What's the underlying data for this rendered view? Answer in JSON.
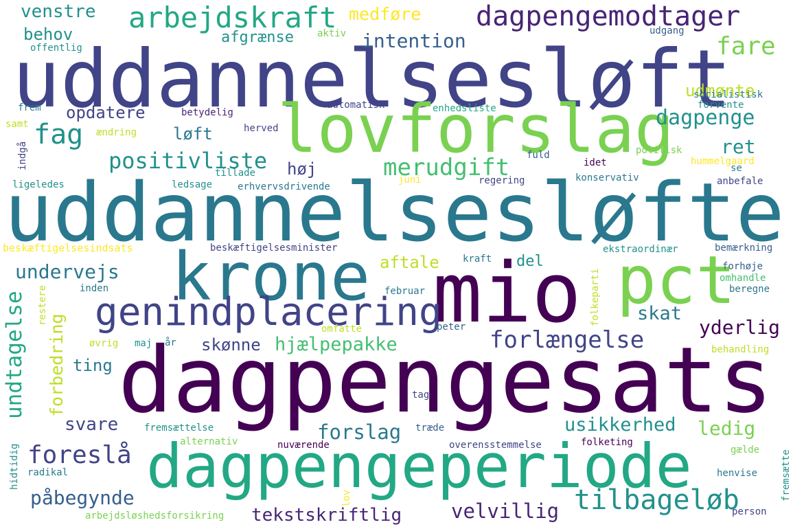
{
  "palette": {
    "dark_purple": "#440154",
    "purple": "#482475",
    "indigo": "#414487",
    "blue": "#355f8d",
    "steel_blue": "#2a788e",
    "teal": "#21918c",
    "sea_green": "#22a884",
    "green": "#44bf70",
    "light_green": "#7ad151",
    "yellow_green": "#bddf26",
    "yellow": "#fde725"
  },
  "words": [
    {
      "text": "dagpengesats",
      "color": "#440154"
    },
    {
      "text": "uddannelsesløfte",
      "color": "#2a788e"
    },
    {
      "text": "uddannelsesløft",
      "color": "#414487"
    },
    {
      "text": "dagpengeperiode",
      "color": "#22a884"
    },
    {
      "text": "mio",
      "color": "#440154"
    },
    {
      "text": "lovforslag",
      "color": "#7ad151"
    },
    {
      "text": "krone",
      "color": "#2a788e"
    },
    {
      "text": "pct",
      "color": "#7ad151"
    },
    {
      "text": "genindplacering",
      "color": "#414487"
    },
    {
      "text": "dagpengemodtager",
      "color": "#482475"
    },
    {
      "text": "arbejdskraft",
      "color": "#22a884"
    },
    {
      "text": "tilbageløb",
      "color": "#21918c"
    },
    {
      "text": "foreslå",
      "color": "#414487"
    },
    {
      "text": "forlængelse",
      "color": "#414487"
    },
    {
      "text": "fag",
      "color": "#21918c"
    },
    {
      "text": "fare",
      "color": "#7ad151"
    },
    {
      "text": "merudgift",
      "color": "#44bf70"
    },
    {
      "text": "positivliste",
      "color": "#21918c"
    },
    {
      "text": "dagpenge",
      "color": "#21918c"
    },
    {
      "text": "hjælpepakke",
      "color": "#44bf70"
    },
    {
      "text": "usikkerhed",
      "color": "#21918c"
    },
    {
      "text": "forslag",
      "color": "#2a788e"
    },
    {
      "text": "velvillig",
      "color": "#482475"
    },
    {
      "text": "tekstskriftlig",
      "color": "#482475"
    },
    {
      "text": "påbegynde",
      "color": "#355f8d"
    },
    {
      "text": "undervejs",
      "color": "#2a788e"
    },
    {
      "text": "yderlig",
      "color": "#440154"
    },
    {
      "text": "intention",
      "color": "#355f8d"
    },
    {
      "text": "venstre",
      "color": "#21918c"
    },
    {
      "text": "behov",
      "color": "#21918c"
    },
    {
      "text": "medføre",
      "color": "#fde725"
    },
    {
      "text": "afgrænse",
      "color": "#21918c"
    },
    {
      "text": "opdatere",
      "color": "#414487"
    },
    {
      "text": "løft",
      "color": "#2a788e"
    },
    {
      "text": "høj",
      "color": "#414487"
    },
    {
      "text": "ret",
      "color": "#21918c"
    },
    {
      "text": "udmønte",
      "color": "#bddf26"
    },
    {
      "text": "aftale",
      "color": "#bddf26"
    },
    {
      "text": "del",
      "color": "#21918c"
    },
    {
      "text": "skat",
      "color": "#2a788e"
    },
    {
      "text": "skønne",
      "color": "#414487"
    },
    {
      "text": "ting",
      "color": "#2a788e"
    },
    {
      "text": "svare",
      "color": "#414487"
    },
    {
      "text": "ledig",
      "color": "#7ad151"
    },
    {
      "text": "undtagelse",
      "color": "#22a884"
    },
    {
      "text": "forbedring",
      "color": "#bddf26"
    },
    {
      "text": "aktiv",
      "color": "#7ad151"
    },
    {
      "text": "udgang",
      "color": "#355f8d"
    },
    {
      "text": "offentlig",
      "color": "#21918c"
    },
    {
      "text": "frem",
      "color": "#2a788e"
    },
    {
      "text": "automatisk",
      "color": "#414487"
    },
    {
      "text": "enhedsliste",
      "color": "#22a884"
    },
    {
      "text": "socialistisk",
      "color": "#2a788e"
    },
    {
      "text": "forvente",
      "color": "#21918c"
    },
    {
      "text": "betydelig",
      "color": "#482475"
    },
    {
      "text": "samt",
      "color": "#bddf26"
    },
    {
      "text": "ændring",
      "color": "#bddf26"
    },
    {
      "text": "herved",
      "color": "#414487"
    },
    {
      "text": "politisk",
      "color": "#7ad151"
    },
    {
      "text": "fuld",
      "color": "#355f8d"
    },
    {
      "text": "idet",
      "color": "#440154"
    },
    {
      "text": "hummelgaard",
      "color": "#fde725"
    },
    {
      "text": "tillade",
      "color": "#21918c"
    },
    {
      "text": "se",
      "color": "#2a788e"
    },
    {
      "text": "indgå",
      "color": "#414487"
    },
    {
      "text": "ligeledes",
      "color": "#21918c"
    },
    {
      "text": "ledsage",
      "color": "#21918c"
    },
    {
      "text": "erhvervsdrivende",
      "color": "#2a788e"
    },
    {
      "text": "juni",
      "color": "#fde725"
    },
    {
      "text": "regering",
      "color": "#414487"
    },
    {
      "text": "konservativ",
      "color": "#2a788e"
    },
    {
      "text": "anbefale",
      "color": "#414487"
    },
    {
      "text": "beskæftigelsesindsats",
      "color": "#fde725"
    },
    {
      "text": "beskæftigelsesminister",
      "color": "#414487"
    },
    {
      "text": "ekstraordinær",
      "color": "#21918c"
    },
    {
      "text": "bemærkning",
      "color": "#355f8d"
    },
    {
      "text": "kraft",
      "color": "#2a788e"
    },
    {
      "text": "forhøje",
      "color": "#355f8d"
    },
    {
      "text": "folkeparti",
      "color": "#bddf26"
    },
    {
      "text": "omhandle",
      "color": "#44bf70"
    },
    {
      "text": "beregne",
      "color": "#2a788e"
    },
    {
      "text": "inden",
      "color": "#2a788e"
    },
    {
      "text": "februar",
      "color": "#2a788e"
    },
    {
      "text": "restere",
      "color": "#bddf26"
    },
    {
      "text": "omfatte",
      "color": "#bddf26"
    },
    {
      "text": "peter",
      "color": "#355f8d"
    },
    {
      "text": "øvrig",
      "color": "#bddf26"
    },
    {
      "text": "maj",
      "color": "#21918c"
    },
    {
      "text": "år",
      "color": "#2a788e"
    },
    {
      "text": "behandling",
      "color": "#bddf26"
    },
    {
      "text": "tag",
      "color": "#414487"
    },
    {
      "text": "fremsættelse",
      "color": "#21918c"
    },
    {
      "text": "træde",
      "color": "#355f8d"
    },
    {
      "text": "alternativ",
      "color": "#7ad151"
    },
    {
      "text": "folketing",
      "color": "#440154"
    },
    {
      "text": "nuværende",
      "color": "#440154"
    },
    {
      "text": "overensstemmelse",
      "color": "#414487"
    },
    {
      "text": "hidtidig",
      "color": "#21918c"
    },
    {
      "text": "radikal",
      "color": "#2a788e"
    },
    {
      "text": "gælde",
      "color": "#7ad151"
    },
    {
      "text": "henvise",
      "color": "#2a788e"
    },
    {
      "text": "fremsætte",
      "color": "#21918c"
    },
    {
      "text": "lov",
      "color": "#fde725"
    },
    {
      "text": "arbejdsløshedsforsikring",
      "color": "#7ad151"
    },
    {
      "text": "person",
      "color": "#414487"
    }
  ]
}
